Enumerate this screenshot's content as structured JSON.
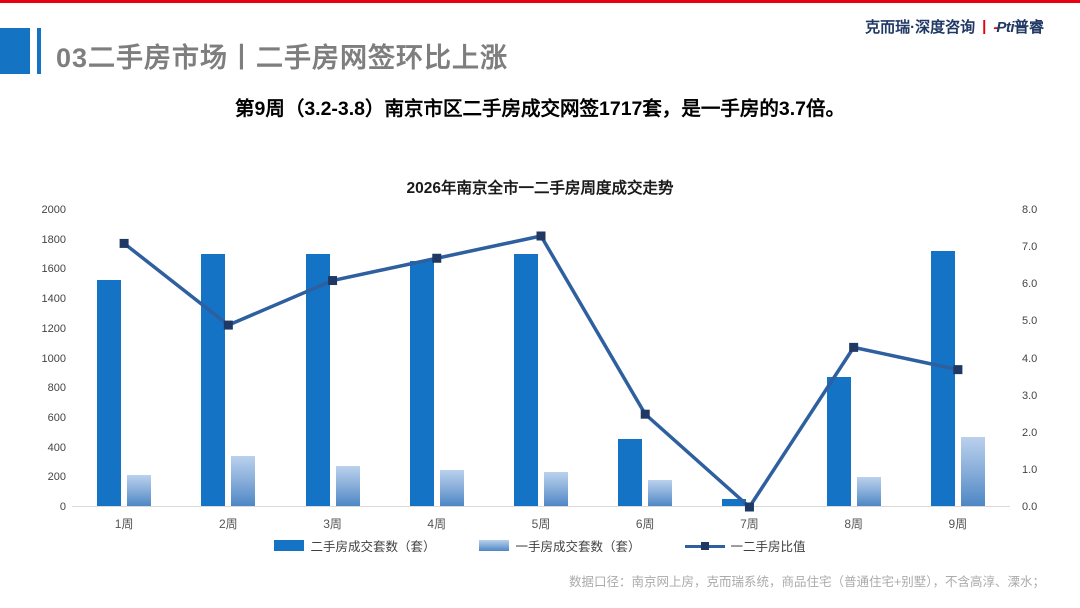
{
  "header": {
    "title": "03二手房市场丨二手房网签环比上涨",
    "brand_left": "克而瑞·深度咨询",
    "brand_separator": "|",
    "brand_logo": "Pti",
    "brand_logo_accent": "-",
    "brand_right": "普睿"
  },
  "subtitle": "第9周（3.2-3.8）南京市区二手房成交网签1717套，是一手房的3.7倍。",
  "chart_data": {
    "type": "bar",
    "subtype": "combo-bar-line-dual-axis",
    "title": "2026年南京全市一二手房周度成交走势",
    "categories": [
      "1周",
      "2周",
      "3周",
      "4周",
      "5周",
      "6周",
      "7周",
      "8周",
      "9周"
    ],
    "series": [
      {
        "name": "二手房成交套数（套）",
        "type": "bar",
        "axis": "left",
        "color": "#1473c4",
        "values": [
          1520,
          1700,
          1700,
          1650,
          1700,
          450,
          50,
          870,
          1717
        ]
      },
      {
        "name": "一手房成交套数（套）",
        "type": "bar",
        "axis": "left",
        "color_top": "#bad1ed",
        "color_bottom": "#4d87c5",
        "values": [
          212,
          340,
          270,
          245,
          232,
          175,
          0,
          195,
          464
        ]
      },
      {
        "name": "一二手房比值",
        "type": "line",
        "axis": "right",
        "color": "#2e5f9f",
        "marker": "square",
        "marker_color": "#1f3864",
        "values": [
          7.1,
          4.9,
          6.1,
          6.7,
          7.3,
          2.5,
          0.0,
          4.3,
          3.7
        ]
      }
    ],
    "left_axis": {
      "min": 0,
      "max": 2000,
      "step": 200,
      "ticks": [
        "2000",
        "1800",
        "1600",
        "1400",
        "1200",
        "1000",
        "800",
        "600",
        "400",
        "200",
        "0"
      ]
    },
    "right_axis": {
      "min": 0.0,
      "max": 8.0,
      "step": 1.0,
      "ticks": [
        "8.0",
        "7.0",
        "6.0",
        "5.0",
        "4.0",
        "3.0",
        "2.0",
        "1.0",
        "0.0"
      ]
    },
    "legend_position": "bottom",
    "grid": false
  },
  "footer": {
    "note": "数据口径：南京网上房，克而瑞系统，商品住宅（普通住宅+别墅），不含高淳、溧水；"
  },
  "colors": {
    "accent_red": "#e60012",
    "accent_blue": "#1573c3",
    "brand_navy": "#203864",
    "header_gray": "#7e7e7e",
    "bar_secondhand": "#1473c4",
    "bar_firsthand_top": "#bad1ed",
    "bar_firsthand_bottom": "#4d87c5",
    "line_blue": "#2e5f9f",
    "marker_navy": "#1f3864",
    "footer_gray": "#ababab"
  }
}
